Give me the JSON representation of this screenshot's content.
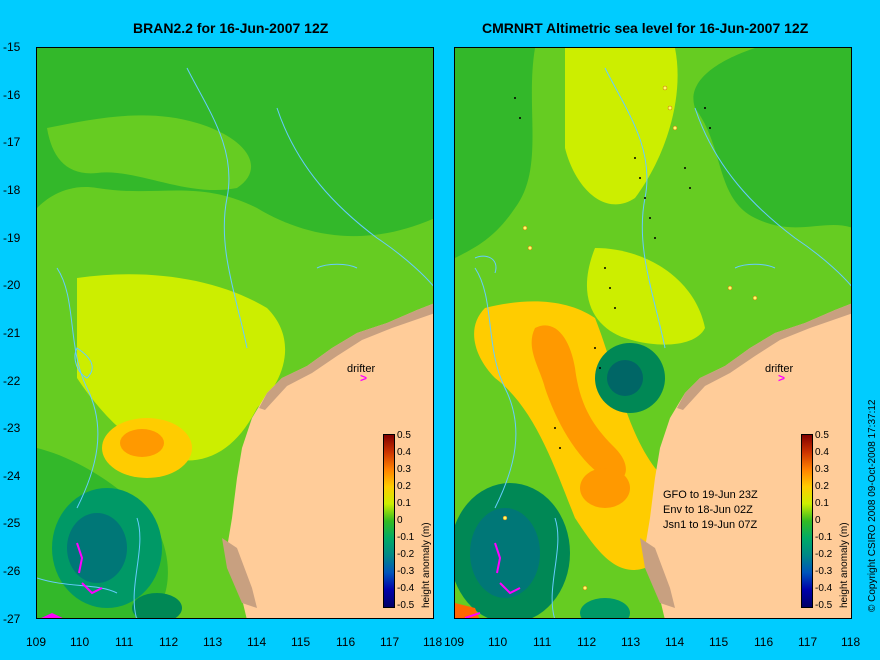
{
  "left_title": "BRAN2.2 for 16-Jun-2007 12Z",
  "right_title": "CMRNRT Altimetric sea level  for 16-Jun-2007 12Z",
  "y_ticks": [
    "-15",
    "-16",
    "-17",
    "-18",
    "-19",
    "-20",
    "-21",
    "-22",
    "-23",
    "-24",
    "-25",
    "-26",
    "-27"
  ],
  "x_ticks": [
    "109",
    "110",
    "111",
    "112",
    "113",
    "114",
    "115",
    "116",
    "117",
    "118"
  ],
  "colorbar": {
    "title": "height anomaly (m)",
    "labels": [
      "0.5",
      "0.4",
      "0.3",
      "0.2",
      "0.1",
      "0",
      "-0.1",
      "-0.2",
      "-0.3",
      "-0.4",
      "-0.5"
    ]
  },
  "drifter_label": "drifter",
  "drifter_marker": ">",
  "legend_lines": [
    "GFO to 19-Jun 23Z",
    "Env to 18-Jun 02Z",
    "Jsn1 to 19-Jun 07Z"
  ],
  "copyright": "© Copyright CSIRO 2008    09-Oct-2008 17:37:12",
  "colors": {
    "background": "#00ccff",
    "land": "#ffcc99",
    "coast_fill": "#c8a080",
    "contour_line": "#66ccff",
    "drifter": "#ff00ff",
    "scale": [
      "#800000",
      "#c04000",
      "#ff8000",
      "#ffcc00",
      "#ccee00",
      "#66cc00",
      "#00aa44",
      "#008888",
      "#0055bb",
      "#0000aa",
      "#000066"
    ]
  }
}
